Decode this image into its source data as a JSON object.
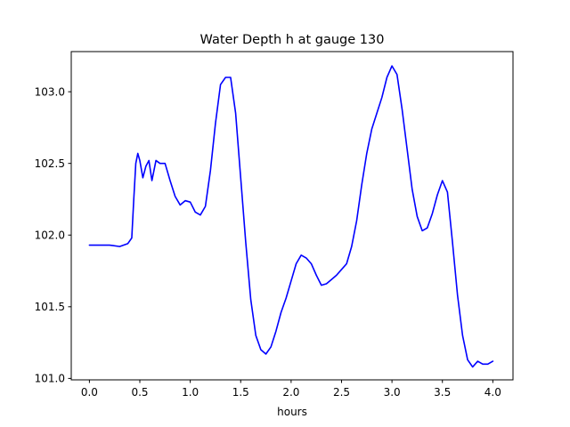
{
  "chart_data": {
    "type": "line",
    "title": "Water Depth h at gauge 130",
    "xlabel": "hours",
    "ylabel": "",
    "xlim": [
      -0.18,
      4.2
    ],
    "ylim": [
      100.99,
      103.28
    ],
    "xticks": [
      0.0,
      0.5,
      1.0,
      1.5,
      2.0,
      2.5,
      3.0,
      3.5,
      4.0
    ],
    "xtick_labels": [
      "0.0",
      "0.5",
      "1.0",
      "1.5",
      "2.0",
      "2.5",
      "3.0",
      "3.5",
      "4.0"
    ],
    "yticks": [
      101.0,
      101.5,
      102.0,
      102.5,
      103.0
    ],
    "ytick_labels": [
      "101.0",
      "101.5",
      "102.0",
      "102.5",
      "103.0"
    ],
    "grid": false,
    "colors": {
      "line": "#0000ff",
      "axes": "#000000",
      "background": "#ffffff"
    },
    "series": [
      {
        "color": "#0000ff",
        "x": [
          0.0,
          0.1,
          0.2,
          0.3,
          0.38,
          0.42,
          0.44,
          0.46,
          0.48,
          0.5,
          0.53,
          0.56,
          0.59,
          0.62,
          0.66,
          0.7,
          0.75,
          0.8,
          0.85,
          0.9,
          0.95,
          1.0,
          1.05,
          1.1,
          1.15,
          1.2,
          1.25,
          1.3,
          1.35,
          1.4,
          1.45,
          1.5,
          1.55,
          1.6,
          1.65,
          1.7,
          1.75,
          1.8,
          1.85,
          1.9,
          1.95,
          2.0,
          2.05,
          2.1,
          2.15,
          2.2,
          2.25,
          2.3,
          2.35,
          2.4,
          2.45,
          2.5,
          2.55,
          2.6,
          2.65,
          2.7,
          2.75,
          2.8,
          2.85,
          2.9,
          2.95,
          3.0,
          3.05,
          3.1,
          3.15,
          3.2,
          3.25,
          3.3,
          3.35,
          3.4,
          3.45,
          3.5,
          3.55,
          3.6,
          3.65,
          3.7,
          3.75,
          3.8,
          3.85,
          3.9,
          3.95,
          4.0
        ],
        "y": [
          101.93,
          101.93,
          101.93,
          101.92,
          101.94,
          101.98,
          102.25,
          102.5,
          102.57,
          102.52,
          102.4,
          102.48,
          102.52,
          102.38,
          102.52,
          102.5,
          102.5,
          102.38,
          102.27,
          102.21,
          102.24,
          102.23,
          102.16,
          102.14,
          102.2,
          102.45,
          102.78,
          103.05,
          103.1,
          103.1,
          102.85,
          102.4,
          101.95,
          101.55,
          101.3,
          101.2,
          101.17,
          101.22,
          101.33,
          101.46,
          101.56,
          101.68,
          101.8,
          101.86,
          101.84,
          101.8,
          101.72,
          101.65,
          101.66,
          101.69,
          101.72,
          101.76,
          101.8,
          101.92,
          102.1,
          102.35,
          102.57,
          102.74,
          102.85,
          102.96,
          103.1,
          103.18,
          103.12,
          102.88,
          102.6,
          102.32,
          102.13,
          102.03,
          102.05,
          102.15,
          102.28,
          102.38,
          102.3,
          101.95,
          101.58,
          101.3,
          101.13,
          101.08,
          101.12,
          101.1,
          101.1,
          101.12
        ]
      }
    ]
  }
}
